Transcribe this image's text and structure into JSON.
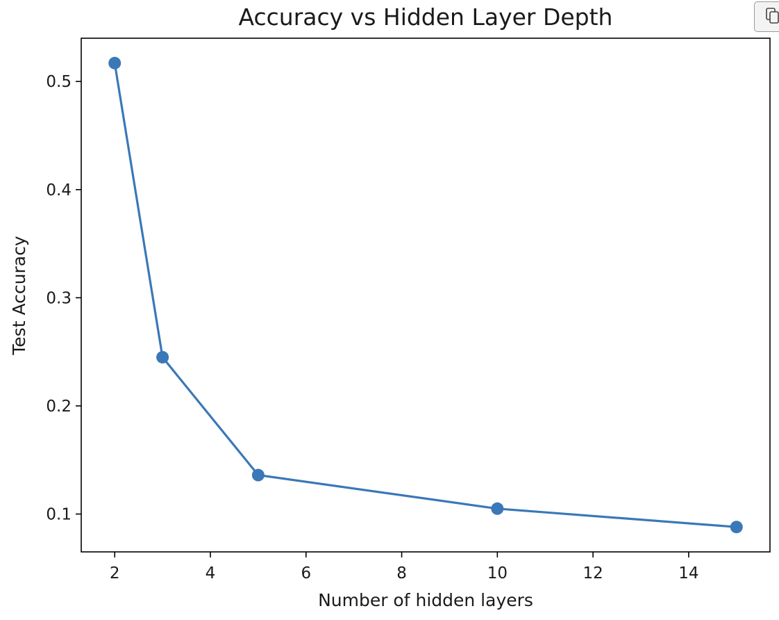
{
  "toolbar": {
    "copy_icon": "copy-icon"
  },
  "chart_data": {
    "type": "line",
    "title": "Accuracy vs Hidden Layer Depth",
    "xlabel": "Number of hidden layers",
    "ylabel": "Test Accuracy",
    "x": [
      2,
      3,
      5,
      10,
      15
    ],
    "series": [
      {
        "values": [
          0.517,
          0.245,
          0.136,
          0.105,
          0.088
        ],
        "color": "#3a78b7",
        "marker": "circle"
      }
    ],
    "xlim": [
      1.3,
      15.7
    ],
    "ylim": [
      0.065,
      0.54
    ],
    "xticks": [
      2,
      4,
      6,
      8,
      10,
      12,
      14
    ],
    "xtick_labels": [
      "2",
      "4",
      "6",
      "8",
      "10",
      "12",
      "14"
    ],
    "yticks": [
      0.1,
      0.2,
      0.3,
      0.4,
      0.5
    ],
    "ytick_labels": [
      "0.1",
      "0.2",
      "0.3",
      "0.4",
      "0.5"
    ],
    "grid": false,
    "legend": "none"
  }
}
